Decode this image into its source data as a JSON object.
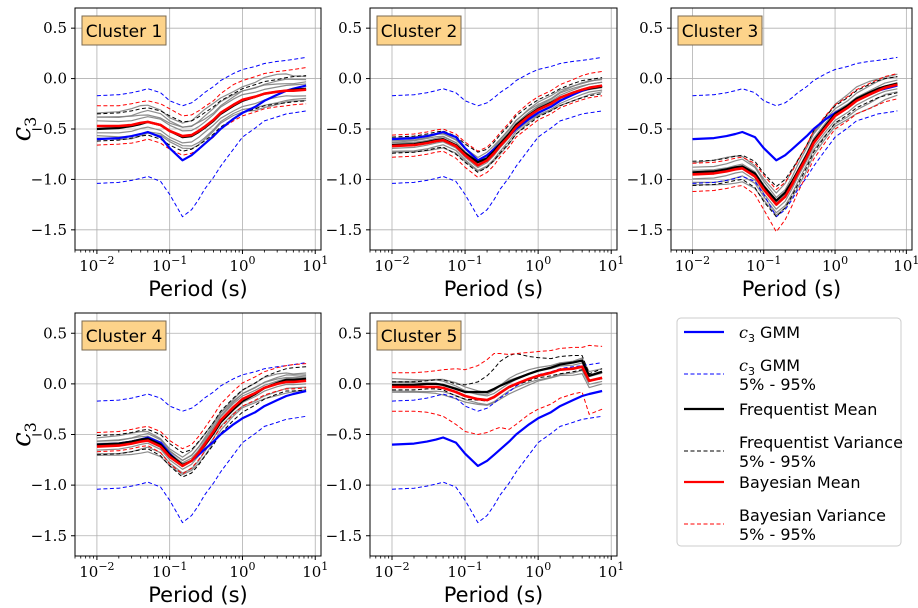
{
  "chart_data": {
    "type": "line",
    "x_axis": {
      "label": "Period (s)",
      "scale": "log",
      "xlim": [
        0.005,
        12
      ],
      "ticks": [
        "10^-2",
        "10^-1",
        "10^0",
        "10^1"
      ]
    },
    "y_axis": {
      "label": "c_3",
      "ylim": [
        -1.7,
        0.7
      ],
      "ticks": [
        "0.5",
        "0.0",
        "−0.5",
        "−1.0",
        "−1.5"
      ]
    },
    "grid": true,
    "x_periods": [
      0.01,
      0.02,
      0.03,
      0.04,
      0.05,
      0.075,
      0.1,
      0.15,
      0.2,
      0.25,
      0.3,
      0.4,
      0.5,
      0.75,
      1,
      1.5,
      2,
      3,
      4,
      5,
      7.5
    ],
    "gmm": {
      "mean": [
        -0.6,
        -0.59,
        -0.57,
        -0.55,
        -0.53,
        -0.58,
        -0.69,
        -0.81,
        -0.76,
        -0.7,
        -0.65,
        -0.57,
        -0.5,
        -0.4,
        -0.34,
        -0.28,
        -0.22,
        -0.16,
        -0.12,
        -0.1,
        -0.07
      ],
      "p05": [
        -1.04,
        -1.03,
        -1.01,
        -0.99,
        -0.97,
        -1.02,
        -1.15,
        -1.37,
        -1.3,
        -1.2,
        -1.1,
        -0.98,
        -0.87,
        -0.7,
        -0.58,
        -0.49,
        -0.42,
        -0.38,
        -0.35,
        -0.34,
        -0.32
      ],
      "p95": [
        -0.17,
        -0.16,
        -0.14,
        -0.12,
        -0.1,
        -0.14,
        -0.22,
        -0.27,
        -0.24,
        -0.19,
        -0.14,
        -0.08,
        -0.02,
        0.05,
        0.09,
        0.12,
        0.15,
        0.17,
        0.18,
        0.19,
        0.21
      ]
    },
    "clusters": [
      {
        "title": "Cluster 1",
        "freq_mean": [
          -0.5,
          -0.49,
          -0.47,
          -0.45,
          -0.43,
          -0.46,
          -0.52,
          -0.58,
          -0.57,
          -0.53,
          -0.49,
          -0.42,
          -0.35,
          -0.27,
          -0.22,
          -0.18,
          -0.15,
          -0.13,
          -0.12,
          -0.11,
          -0.1
        ],
        "freq_lo": [
          -0.62,
          -0.61,
          -0.59,
          -0.57,
          -0.56,
          -0.6,
          -0.66,
          -0.72,
          -0.7,
          -0.66,
          -0.62,
          -0.55,
          -0.48,
          -0.4,
          -0.34,
          -0.3,
          -0.27,
          -0.25,
          -0.24,
          -0.23,
          -0.22
        ],
        "freq_hi": [
          -0.35,
          -0.34,
          -0.32,
          -0.3,
          -0.29,
          -0.32,
          -0.37,
          -0.43,
          -0.42,
          -0.38,
          -0.34,
          -0.28,
          -0.22,
          -0.15,
          -0.1,
          -0.06,
          -0.03,
          -0.01,
          0.01,
          0.02,
          0.03
        ],
        "bayes_mean": [
          -0.47,
          -0.47,
          -0.46,
          -0.44,
          -0.43,
          -0.46,
          -0.52,
          -0.57,
          -0.56,
          -0.52,
          -0.48,
          -0.41,
          -0.34,
          -0.26,
          -0.21,
          -0.18,
          -0.15,
          -0.13,
          -0.12,
          -0.12,
          -0.11
        ],
        "bayes_lo": [
          -0.66,
          -0.65,
          -0.64,
          -0.62,
          -0.6,
          -0.64,
          -0.7,
          -0.76,
          -0.74,
          -0.7,
          -0.65,
          -0.58,
          -0.5,
          -0.42,
          -0.37,
          -0.33,
          -0.3,
          -0.28,
          -0.27,
          -0.26,
          -0.25
        ],
        "bayes_hi": [
          -0.27,
          -0.27,
          -0.25,
          -0.23,
          -0.22,
          -0.25,
          -0.3,
          -0.37,
          -0.36,
          -0.32,
          -0.28,
          -0.22,
          -0.15,
          -0.06,
          -0.02,
          0.02,
          0.05,
          0.07,
          0.08,
          0.09,
          0.11
        ],
        "gray_offsets": [
          -0.12,
          -0.06,
          0.0,
          0.05,
          0.1,
          0.15,
          -0.1,
          0.08
        ]
      },
      {
        "title": "Cluster 2",
        "freq_mean": [
          -0.66,
          -0.65,
          -0.63,
          -0.61,
          -0.6,
          -0.66,
          -0.74,
          -0.83,
          -0.79,
          -0.72,
          -0.65,
          -0.55,
          -0.46,
          -0.36,
          -0.3,
          -0.24,
          -0.19,
          -0.14,
          -0.11,
          -0.1,
          -0.08
        ],
        "freq_lo": [
          -0.74,
          -0.73,
          -0.71,
          -0.69,
          -0.68,
          -0.75,
          -0.83,
          -0.93,
          -0.88,
          -0.81,
          -0.74,
          -0.64,
          -0.55,
          -0.45,
          -0.38,
          -0.32,
          -0.27,
          -0.22,
          -0.19,
          -0.17,
          -0.15
        ],
        "freq_hi": [
          -0.58,
          -0.57,
          -0.55,
          -0.53,
          -0.52,
          -0.57,
          -0.65,
          -0.73,
          -0.7,
          -0.63,
          -0.56,
          -0.46,
          -0.37,
          -0.27,
          -0.21,
          -0.15,
          -0.1,
          -0.05,
          -0.02,
          -0.01,
          0.01
        ],
        "bayes_mean": [
          -0.67,
          -0.66,
          -0.64,
          -0.62,
          -0.61,
          -0.67,
          -0.76,
          -0.86,
          -0.81,
          -0.74,
          -0.67,
          -0.57,
          -0.48,
          -0.37,
          -0.31,
          -0.25,
          -0.19,
          -0.14,
          -0.11,
          -0.09,
          -0.07
        ],
        "bayes_lo": [
          -0.78,
          -0.77,
          -0.75,
          -0.73,
          -0.72,
          -0.79,
          -0.88,
          -0.98,
          -0.93,
          -0.86,
          -0.78,
          -0.68,
          -0.58,
          -0.48,
          -0.41,
          -0.35,
          -0.29,
          -0.24,
          -0.21,
          -0.19,
          -0.17
        ],
        "bayes_hi": [
          -0.56,
          -0.55,
          -0.53,
          -0.51,
          -0.5,
          -0.55,
          -0.63,
          -0.72,
          -0.68,
          -0.61,
          -0.54,
          -0.44,
          -0.35,
          -0.24,
          -0.18,
          -0.12,
          -0.06,
          -0.01,
          0.03,
          0.05,
          0.07
        ],
        "gray_offsets": [
          -0.05,
          -0.02,
          0.0,
          0.03,
          0.06,
          -0.07,
          0.04,
          0.07
        ]
      },
      {
        "title": "Cluster 3",
        "freq_mean": [
          -0.93,
          -0.92,
          -0.9,
          -0.88,
          -0.87,
          -0.94,
          -1.07,
          -1.21,
          -1.13,
          -1.02,
          -0.92,
          -0.76,
          -0.62,
          -0.46,
          -0.35,
          -0.27,
          -0.2,
          -0.14,
          -0.1,
          -0.08,
          -0.05
        ],
        "freq_lo": [
          -1.06,
          -1.05,
          -1.03,
          -1.01,
          -1.0,
          -1.08,
          -1.22,
          -1.37,
          -1.28,
          -1.16,
          -1.05,
          -0.88,
          -0.73,
          -0.56,
          -0.44,
          -0.36,
          -0.29,
          -0.23,
          -0.19,
          -0.17,
          -0.14
        ],
        "freq_hi": [
          -0.82,
          -0.81,
          -0.79,
          -0.77,
          -0.76,
          -0.82,
          -0.94,
          -1.07,
          -1.0,
          -0.9,
          -0.81,
          -0.66,
          -0.52,
          -0.37,
          -0.27,
          -0.19,
          -0.12,
          -0.06,
          -0.02,
          0.0,
          0.02
        ],
        "bayes_mean": [
          -0.95,
          -0.94,
          -0.92,
          -0.9,
          -0.89,
          -0.97,
          -1.1,
          -1.25,
          -1.17,
          -1.05,
          -0.94,
          -0.78,
          -0.64,
          -0.48,
          -0.37,
          -0.29,
          -0.22,
          -0.16,
          -0.12,
          -0.09,
          -0.06
        ],
        "bayes_lo": [
          -1.12,
          -1.11,
          -1.09,
          -1.07,
          -1.06,
          -1.15,
          -1.3,
          -1.52,
          -1.4,
          -1.26,
          -1.13,
          -0.95,
          -0.8,
          -0.62,
          -0.5,
          -0.42,
          -0.35,
          -0.3,
          -0.26,
          -0.23,
          -0.2
        ],
        "bayes_hi": [
          -0.84,
          -0.83,
          -0.81,
          -0.79,
          -0.78,
          -0.84,
          -0.96,
          -1.1,
          -1.03,
          -0.92,
          -0.82,
          -0.66,
          -0.52,
          -0.36,
          -0.26,
          -0.18,
          -0.11,
          -0.05,
          -0.01,
          0.02,
          0.05
        ],
        "gray_offsets": [
          -0.08,
          -0.04,
          0.0,
          0.04,
          0.08,
          -0.12,
          0.12,
          0.02
        ]
      },
      {
        "title": "Cluster 4",
        "freq_mean": [
          -0.6,
          -0.59,
          -0.57,
          -0.55,
          -0.54,
          -0.6,
          -0.7,
          -0.8,
          -0.76,
          -0.68,
          -0.61,
          -0.49,
          -0.38,
          -0.25,
          -0.17,
          -0.1,
          -0.04,
          0.01,
          0.04,
          0.04,
          0.05
        ],
        "freq_lo": [
          -0.7,
          -0.69,
          -0.67,
          -0.65,
          -0.64,
          -0.71,
          -0.81,
          -0.92,
          -0.88,
          -0.8,
          -0.72,
          -0.6,
          -0.49,
          -0.36,
          -0.28,
          -0.21,
          -0.15,
          -0.1,
          -0.07,
          -0.07,
          -0.06
        ],
        "freq_hi": [
          -0.51,
          -0.5,
          -0.48,
          -0.46,
          -0.45,
          -0.5,
          -0.59,
          -0.68,
          -0.65,
          -0.57,
          -0.5,
          -0.38,
          -0.27,
          -0.14,
          -0.06,
          0.01,
          0.07,
          0.12,
          0.15,
          0.16,
          0.17
        ],
        "bayes_mean": [
          -0.62,
          -0.61,
          -0.59,
          -0.57,
          -0.56,
          -0.62,
          -0.72,
          -0.81,
          -0.76,
          -0.68,
          -0.6,
          -0.47,
          -0.36,
          -0.23,
          -0.15,
          -0.09,
          -0.04,
          0.0,
          0.02,
          0.02,
          0.03
        ],
        "bayes_lo": [
          -0.67,
          -0.66,
          -0.64,
          -0.62,
          -0.61,
          -0.68,
          -0.79,
          -0.89,
          -0.83,
          -0.75,
          -0.67,
          -0.54,
          -0.43,
          -0.3,
          -0.22,
          -0.16,
          -0.11,
          -0.07,
          -0.05,
          -0.05,
          -0.04
        ],
        "bayes_hi": [
          -0.48,
          -0.47,
          -0.45,
          -0.43,
          -0.42,
          -0.47,
          -0.56,
          -0.64,
          -0.6,
          -0.52,
          -0.44,
          -0.31,
          -0.2,
          -0.07,
          0.01,
          0.07,
          0.12,
          0.16,
          0.18,
          0.19,
          0.2
        ],
        "gray_offsets": [
          -0.07,
          -0.03,
          0.0,
          0.03,
          0.06,
          -0.1,
          0.09,
          0.05
        ]
      },
      {
        "title": "Cluster 5",
        "freq_mean": [
          -0.01,
          -0.01,
          0.0,
          0.0,
          -0.01,
          -0.05,
          -0.08,
          -0.08,
          -0.08,
          -0.05,
          -0.02,
          0.02,
          0.05,
          0.1,
          0.13,
          0.16,
          0.19,
          0.21,
          0.23,
          0.08,
          0.12
        ],
        "freq_lo": [
          -0.06,
          -0.06,
          -0.05,
          -0.05,
          -0.06,
          -0.12,
          -0.15,
          -0.16,
          -0.17,
          -0.13,
          -0.09,
          -0.04,
          -0.01,
          0.03,
          0.06,
          0.08,
          0.1,
          0.12,
          0.14,
          0.03,
          0.05
        ],
        "freq_hi": [
          0.02,
          0.02,
          0.03,
          0.04,
          0.04,
          0.0,
          -0.01,
          0.02,
          0.08,
          0.15,
          0.22,
          0.28,
          0.3,
          0.27,
          0.26,
          0.25,
          0.27,
          0.28,
          0.28,
          0.1,
          0.15
        ],
        "bayes_mean": [
          -0.03,
          -0.03,
          -0.03,
          -0.03,
          -0.04,
          -0.08,
          -0.12,
          -0.15,
          -0.16,
          -0.13,
          -0.09,
          -0.03,
          0.0,
          0.05,
          0.08,
          0.11,
          0.14,
          0.15,
          0.17,
          0.03,
          0.06
        ],
        "bayes_lo": [
          -0.27,
          -0.27,
          -0.28,
          -0.3,
          -0.32,
          -0.4,
          -0.47,
          -0.5,
          -0.48,
          -0.45,
          -0.43,
          -0.45,
          -0.4,
          -0.3,
          -0.25,
          -0.2,
          -0.14,
          -0.1,
          -0.08,
          -0.3,
          -0.25
        ],
        "bayes_hi": [
          0.11,
          0.11,
          0.12,
          0.13,
          0.14,
          0.15,
          0.14,
          0.18,
          0.24,
          0.3,
          0.3,
          0.29,
          0.3,
          0.31,
          0.32,
          0.33,
          0.35,
          0.36,
          0.36,
          0.38,
          0.37
        ],
        "gray_offsets": [
          -0.04,
          0.0,
          0.04,
          0.08,
          -0.06,
          0.06
        ]
      }
    ],
    "legend": {
      "placement": "right of Cluster 5",
      "entries": [
        {
          "lines": [
            "c3 GMM"
          ],
          "color": "#0000ff",
          "style": "solid-thick"
        },
        {
          "lines": [
            "c3 GMM",
            "5% - 95%"
          ],
          "color": "#0000ff",
          "style": "dashed"
        },
        {
          "lines": [
            "Frequentist Mean"
          ],
          "color": "#000000",
          "style": "solid-thick"
        },
        {
          "lines": [
            "Frequentist Variance",
            "5% - 95%"
          ],
          "color": "#000000",
          "style": "dashed"
        },
        {
          "lines": [
            "Bayesian Mean"
          ],
          "color": "#ff0000",
          "style": "solid-thick"
        },
        {
          "lines": [
            "Bayesian Variance",
            "5% - 95%"
          ],
          "color": "#ff0000",
          "style": "dashed"
        }
      ]
    },
    "colors": {
      "gmm": "#0000ff",
      "frequentist": "#000000",
      "bayesian": "#ff0000",
      "stations": "#808080",
      "title_box": "#fdd38a"
    }
  }
}
